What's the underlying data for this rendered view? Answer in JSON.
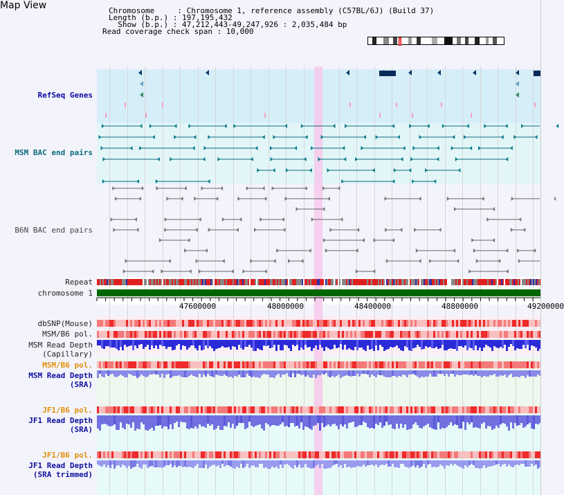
{
  "page": {
    "title": "Map View"
  },
  "info": {
    "chromosome_line": "Chromosome     : Chromosome 1, reference assembly (C57BL/6J) (Build 37)",
    "length_line": "Length (b.p.) : 197,195,432",
    "show_line": "  Show (b.p.) : 47,212,443-49,247,926 : 2,035,484 bp",
    "coverage_line": "Read coverage check span : 10,000"
  },
  "tracks": {
    "refseq": "RefSeq Genes",
    "msm_bac": "MSM BAC end pairs",
    "b6n_bac": "B6N BAC end pairs",
    "repeat": "Repeat",
    "chromosome": "chromosome 1",
    "dbsnp": "dbSNP(Mouse)",
    "msm_b6_pol1": "MSM/B6 pol.",
    "msm_read_depth_cap": "MSM Read Depth\n(Capillary)",
    "msm_b6_pol2": "MSM/B6 pol.",
    "msm_read_depth_sra": "MSM Read Depth\n(SRA)",
    "jf1_b6_pol1": "JF1/B6 pol.",
    "jf1_read_depth_sra": "JF1 Read Depth\n(SRA)",
    "jf1_b6_pol2": "JF1/B6 pol.",
    "jf1_read_depth_trim": "JF1 Read Depth\n(SRA trimmed)"
  },
  "axis": {
    "ticks": [
      "47600000",
      "48000000",
      "48400000",
      "48800000",
      "49200000"
    ]
  },
  "colors": {
    "refseq_bg": "#d6eef8",
    "msm_bac_bg": "#e2f6f8",
    "b6n_bac_bg": "#f3f3fb",
    "highlight": "#f7c8ec",
    "chromosome_bar": "#006600",
    "depth_blue": "#2222dd",
    "depth_light": "#8888ee",
    "pol_red": "#ee3333"
  }
}
